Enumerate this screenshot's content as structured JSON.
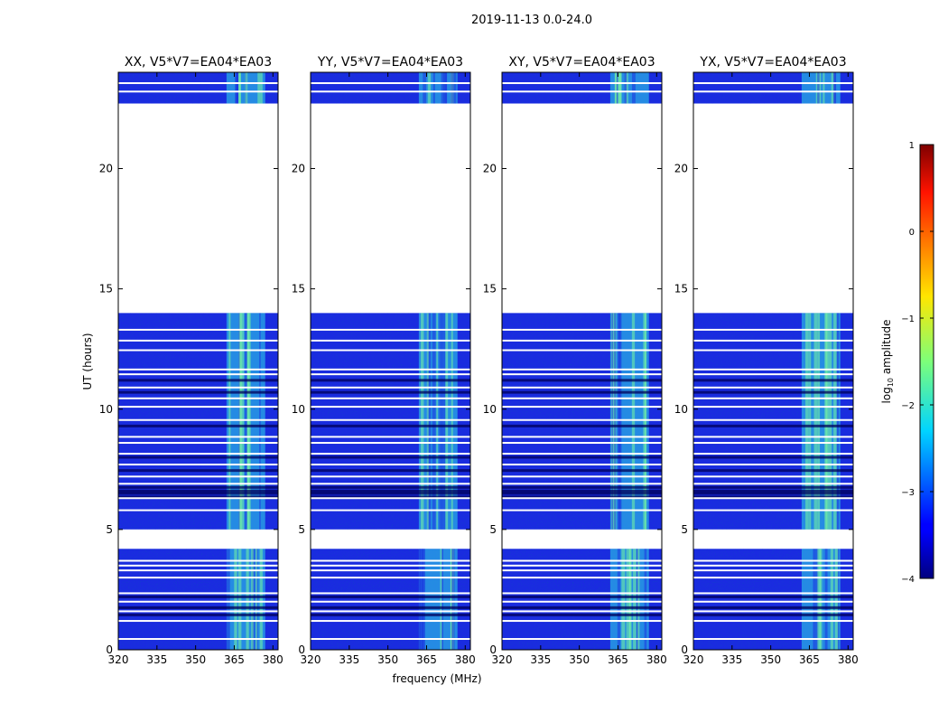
{
  "chart_data": {
    "type": "heatmap",
    "suptitle": "2019-11-13 0.0-24.0",
    "xlabel": "frequency (MHz)",
    "ylabel": "UT (hours)",
    "xlim": [
      320,
      382
    ],
    "ylim": [
      0,
      24
    ],
    "x_ticks": [
      320,
      335,
      350,
      365,
      380
    ],
    "y_ticks": [
      0,
      5,
      10,
      15,
      20
    ],
    "panels": [
      {
        "title": "XX, V5*V7=EA04*EA03"
      },
      {
        "title": "YY, V5*V7=EA04*EA03"
      },
      {
        "title": "XY, V5*V7=EA04*EA03"
      },
      {
        "title": "YX, V5*V7=EA04*EA03"
      }
    ],
    "data_blocks_ut": [
      [
        0,
        4.2
      ],
      [
        5.0,
        14.0
      ],
      [
        22.7,
        24.0
      ]
    ],
    "flagged_gap_ut": [
      [
        4.2,
        5.0
      ],
      [
        14.0,
        22.7
      ]
    ],
    "flagged_row_ut": [
      0.45,
      1.2,
      1.6,
      2.0,
      2.35,
      3.0,
      3.3,
      3.5,
      3.7,
      5.8,
      6.3,
      6.9,
      7.2,
      7.7,
      8.15,
      8.6,
      8.85,
      9.55,
      10.1,
      10.45,
      10.9,
      11.45,
      11.65,
      12.45,
      12.85,
      13.3,
      23.2,
      23.55
    ],
    "rfi_band_mhz": [
      362,
      377
    ],
    "colorbar": {
      "label": "log10 amplitude",
      "range": [
        -4,
        1
      ],
      "ticks": [
        -4,
        -3,
        -2,
        -1,
        0,
        1
      ],
      "tick_labels": [
        "−4",
        "−3",
        "−2",
        "−1",
        "0",
        "1"
      ]
    }
  }
}
